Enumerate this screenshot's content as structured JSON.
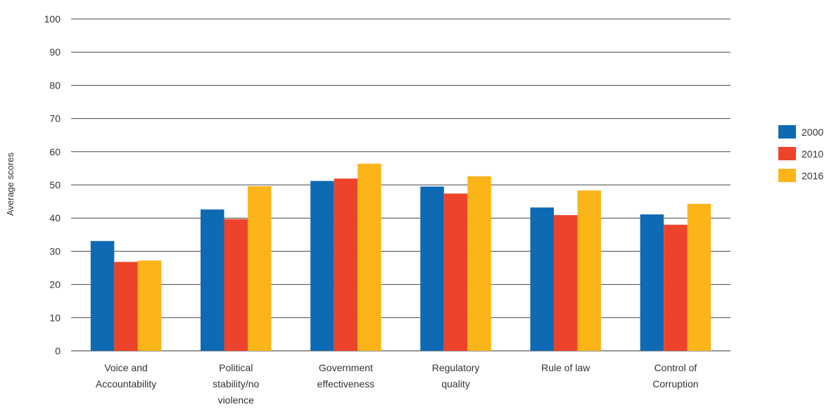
{
  "chart_data": {
    "type": "bar",
    "title": "",
    "xlabel": "",
    "ylabel": "Average scores",
    "ylim": [
      0,
      100
    ],
    "yticks": [
      0,
      10,
      20,
      30,
      40,
      50,
      60,
      70,
      80,
      90,
      100
    ],
    "grid": true,
    "legend_position": "right",
    "categories": [
      [
        "Voice and",
        "Accountability"
      ],
      [
        "Political",
        "stability/no",
        "violence"
      ],
      [
        "Government",
        "effectiveness"
      ],
      [
        "Regulatory",
        "quality"
      ],
      [
        "Rule of law"
      ],
      [
        "Control of",
        "Corruption"
      ]
    ],
    "series": [
      {
        "name": "2000",
        "color": "#0f6ab4",
        "values": [
          33.1,
          42.6,
          51.2,
          49.5,
          43.2,
          41.1
        ]
      },
      {
        "name": "2010",
        "color": "#ee432b",
        "values": [
          26.8,
          39.7,
          51.9,
          47.4,
          40.9,
          38.0
        ]
      },
      {
        "name": "2016",
        "color": "#fbb518",
        "values": [
          27.2,
          49.6,
          56.4,
          52.6,
          48.3,
          44.3
        ]
      }
    ]
  }
}
